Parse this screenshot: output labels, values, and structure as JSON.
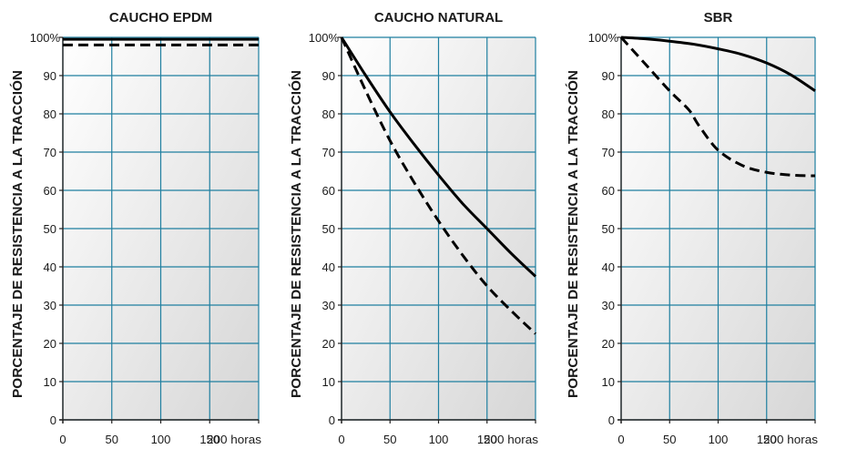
{
  "chart_data": [
    {
      "type": "line",
      "title": "CAUCHO EPDM",
      "ylabel": "PORCENTAJE DE RESISTENCIA A LA TRACCIÓN",
      "xlabel": "",
      "xlim": [
        0,
        200
      ],
      "ylim": [
        0,
        100
      ],
      "x_ticks": [
        "0",
        "50",
        "100",
        "150",
        "200 horas"
      ],
      "y_ticks": [
        "0",
        "10",
        "20",
        "30",
        "40",
        "50",
        "60",
        "70",
        "80",
        "90",
        "100%"
      ],
      "grid": true,
      "grid_color": "#1f7fa0",
      "series": [
        {
          "style": "solid",
          "x": [
            0,
            50,
            100,
            150,
            200
          ],
          "y": [
            99.5,
            99.5,
            99.5,
            99.5,
            99.5
          ]
        },
        {
          "style": "dashed",
          "x": [
            0,
            50,
            100,
            150,
            200
          ],
          "y": [
            98,
            98,
            98,
            98,
            98
          ]
        }
      ]
    },
    {
      "type": "line",
      "title": "CAUCHO NATURAL",
      "ylabel": "PORCENTAJE DE RESISTENCIA A LA TRACCIÓN",
      "xlabel": "",
      "xlim": [
        0,
        200
      ],
      "ylim": [
        0,
        100
      ],
      "x_ticks": [
        "0",
        "50",
        "100",
        "150",
        "200 horas"
      ],
      "y_ticks": [
        "0",
        "10",
        "20",
        "30",
        "40",
        "50",
        "60",
        "70",
        "80",
        "90",
        "100%"
      ],
      "grid": true,
      "grid_color": "#1f7fa0",
      "series": [
        {
          "style": "solid",
          "x": [
            0,
            25,
            50,
            75,
            100,
            125,
            150,
            175,
            200
          ],
          "y": [
            100,
            90,
            80.5,
            72,
            64,
            56.5,
            50,
            43.5,
            37.5
          ]
        },
        {
          "style": "dashed",
          "x": [
            0,
            25,
            50,
            75,
            100,
            125,
            150,
            175,
            200
          ],
          "y": [
            100,
            86,
            73,
            62,
            52,
            43,
            35,
            28.5,
            22.5
          ]
        }
      ]
    },
    {
      "type": "line",
      "title": "SBR",
      "ylabel": "PORCENTAJE DE RESISTENCIA A LA TRACCIÓN",
      "xlabel": "",
      "xlim": [
        0,
        200
      ],
      "ylim": [
        0,
        100
      ],
      "x_ticks": [
        "0",
        "50",
        "100",
        "150",
        "200 horas"
      ],
      "y_ticks": [
        "0",
        "10",
        "20",
        "30",
        "40",
        "50",
        "60",
        "70",
        "80",
        "90",
        "100%"
      ],
      "grid": true,
      "grid_color": "#1f7fa0",
      "series": [
        {
          "style": "solid",
          "x": [
            0,
            25,
            50,
            75,
            100,
            125,
            150,
            175,
            200
          ],
          "y": [
            100,
            99.6,
            99,
            98.2,
            97,
            95.5,
            93.3,
            90.2,
            86
          ]
        },
        {
          "style": "dashed",
          "x": [
            0,
            25,
            50,
            70,
            80,
            100,
            125,
            150,
            175,
            200
          ],
          "y": [
            100,
            93,
            86,
            81,
            77,
            70.5,
            66.5,
            64.7,
            64,
            63.8
          ]
        }
      ]
    }
  ]
}
